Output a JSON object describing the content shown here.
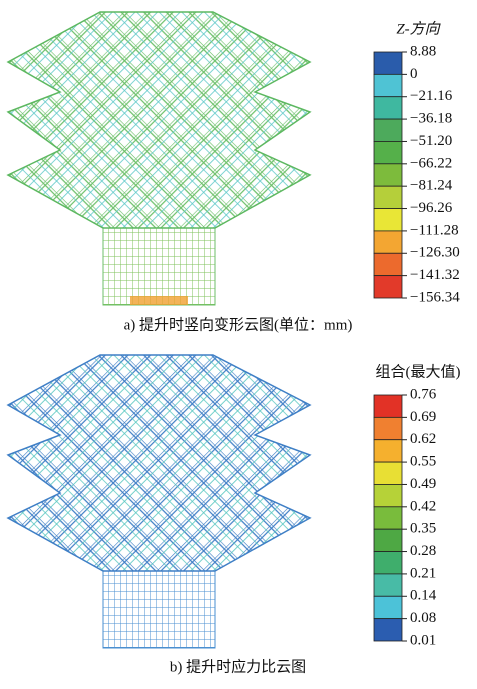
{
  "panels": [
    {
      "legend": {
        "title": "Z-方向",
        "labels": [
          "8.88",
          "0",
          "−21.16",
          "−36.18",
          "−51.20",
          "−66.22",
          "−81.24",
          "−96.26",
          "−111.28",
          "−126.30",
          "−141.32",
          "−156.34"
        ],
        "colors": [
          "#2a5cab",
          "#4fc3d4",
          "#3fb8a0",
          "#4daa5c",
          "#55b04a",
          "#7dbb3c",
          "#b5cf3a",
          "#e9e636",
          "#f3a632",
          "#ec6a2d",
          "#e23a2a"
        ]
      },
      "caption": "a)  提升时竖向变形云图(单位：mm)"
    },
    {
      "legend": {
        "title": "组合(最大值)",
        "labels": [
          "0.76",
          "0.69",
          "0.62",
          "0.55",
          "0.49",
          "0.42",
          "0.35",
          "0.28",
          "0.21",
          "0.14",
          "0.08",
          "0.01"
        ],
        "colors": [
          "#e23226",
          "#f08030",
          "#f5b02e",
          "#e8df34",
          "#b6d238",
          "#79bc3c",
          "#4ea844",
          "#3fae6c",
          "#48bba6",
          "#4cc2d8",
          "#2b5db0"
        ]
      },
      "caption": "b)  提升时应力比云图"
    }
  ]
}
